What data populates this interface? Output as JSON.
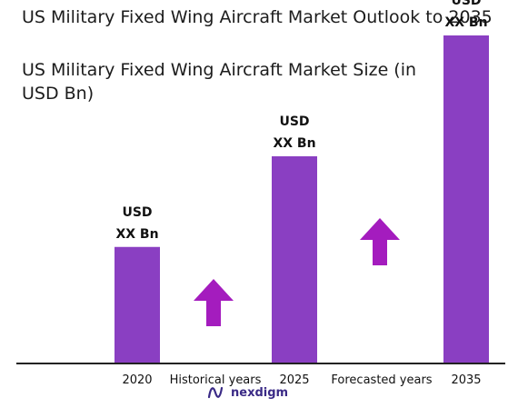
{
  "title": "US Military Fixed Wing Aircraft Market Outlook to 2035",
  "subtitle": "US Military Fixed Wing Aircraft Market Size (in USD Bn)",
  "colors": {
    "bar": "#8a3fc2",
    "arrow": "#a41cbe",
    "axis": "#222222",
    "logo": "#3a2a86"
  },
  "chart_data": {
    "type": "bar",
    "categories": [
      "2020",
      "2025",
      "2035"
    ],
    "values": [
      27,
      48,
      76
    ],
    "ylim": [
      0,
      80
    ],
    "value_labels": [
      {
        "line1": "USD",
        "line2": "XX Bn"
      },
      {
        "line1": "USD",
        "line2": "XX Bn"
      },
      {
        "line1": "USD",
        "line2": "XX Bn"
      }
    ],
    "annotations": [
      "Historical years",
      "Forecasted years"
    ],
    "xlabel": "",
    "ylabel": "",
    "grid": false,
    "legend": "none"
  },
  "logo": {
    "text": "nexdigm",
    "icon": "nexdigm-logo-icon"
  }
}
